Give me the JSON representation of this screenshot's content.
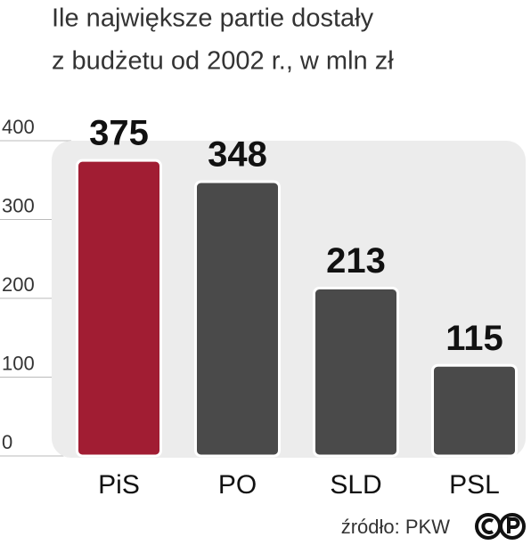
{
  "chart_data": {
    "type": "bar",
    "title": "Ile największe partie dostały",
    "subtitle": "z budżetu od 2002 r., w mln zł",
    "categories": [
      "PiS",
      "PO",
      "SLD",
      "PSL"
    ],
    "values": [
      375,
      348,
      213,
      115
    ],
    "colors": [
      "#a11d33",
      "#4a4a4a",
      "#4a4a4a",
      "#4a4a4a"
    ],
    "ylim": [
      0,
      400
    ],
    "yticks": [
      0,
      100,
      200,
      300,
      400
    ],
    "grid": true,
    "source": "źródło: PKW"
  }
}
